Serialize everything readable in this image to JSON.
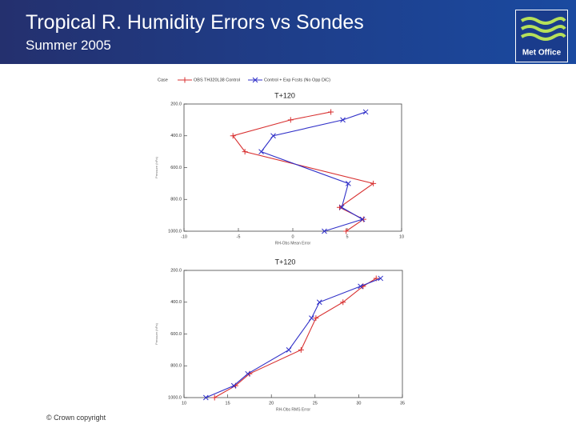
{
  "header": {
    "title": "Tropical R. Humidity Errors vs Sondes",
    "subtitle": "Summer 2005",
    "logo_text": "Met Office"
  },
  "footer": "© Crown copyright",
  "legend_title": "Case",
  "chart_data": [
    {
      "type": "line",
      "title": "T+120",
      "x_label": "RH-Obs Mean Error",
      "y_label": "Pressure (hPa)",
      "xlim": [
        -10,
        10
      ],
      "xticks": [
        -10,
        -5,
        0,
        5,
        10
      ],
      "ylim": [
        200,
        1000
      ],
      "y_inverted": true,
      "yticks": [
        {
          "value": 200,
          "label": "200.0"
        },
        {
          "value": 400,
          "label": "400.0"
        },
        {
          "value": 600,
          "label": "600.0"
        },
        {
          "value": 800,
          "label": "800.0"
        },
        {
          "value": 1000,
          "label": "1000.0"
        }
      ],
      "y": [
        250,
        300,
        400,
        500,
        700,
        850,
        925,
        1000
      ],
      "series": [
        {
          "name": "OBS TH320L38 Control",
          "color": "#d83030",
          "marker": "+",
          "values": [
            3.5,
            -0.2,
            -5.5,
            -4.4,
            7.4,
            4.3,
            6.5,
            4.9
          ]
        },
        {
          "name": "Control + Exp Fcsts (No Opp DiC)",
          "color": "#3030c8",
          "marker": "x",
          "values": [
            6.7,
            4.6,
            -1.8,
            -2.9,
            5.1,
            4.5,
            6.4,
            2.9
          ]
        }
      ]
    },
    {
      "type": "line",
      "title": "T+120",
      "x_label": "RH-Obs RMS Error",
      "y_label": "Pressure (hPa)",
      "xlim": [
        10,
        35
      ],
      "xticks": [
        10,
        15,
        20,
        25,
        30,
        35
      ],
      "ylim": [
        200,
        1000
      ],
      "y_inverted": true,
      "yticks": [
        {
          "value": 200,
          "label": "200.0"
        },
        {
          "value": 400,
          "label": "400.0"
        },
        {
          "value": 600,
          "label": "600.0"
        },
        {
          "value": 800,
          "label": "800.0"
        },
        {
          "value": 1000,
          "label": "1000.0"
        }
      ],
      "y": [
        250,
        300,
        400,
        500,
        700,
        850,
        925,
        1000
      ],
      "series": [
        {
          "color": "#d83030",
          "marker": "+",
          "values": [
            32.0,
            30.5,
            28.2,
            25.1,
            23.4,
            17.5,
            15.9,
            13.5
          ]
        },
        {
          "color": "#3030c8",
          "marker": "x",
          "values": [
            32.5,
            30.2,
            25.5,
            24.6,
            22.0,
            17.3,
            15.7,
            12.5
          ]
        }
      ]
    }
  ]
}
